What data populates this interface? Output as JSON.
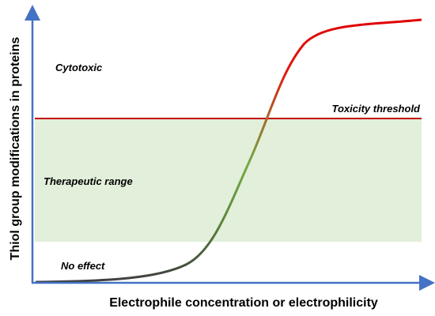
{
  "axes": {
    "y_label": "Thiol group modifications in proteins",
    "x_label": "Electrophile concentration or electrophilicity"
  },
  "regions": {
    "cytotoxic": "Cytotoxic",
    "threshold": "Toxicity threshold",
    "therapeutic": "Therapeutic range",
    "no_effect": "No effect"
  }
}
